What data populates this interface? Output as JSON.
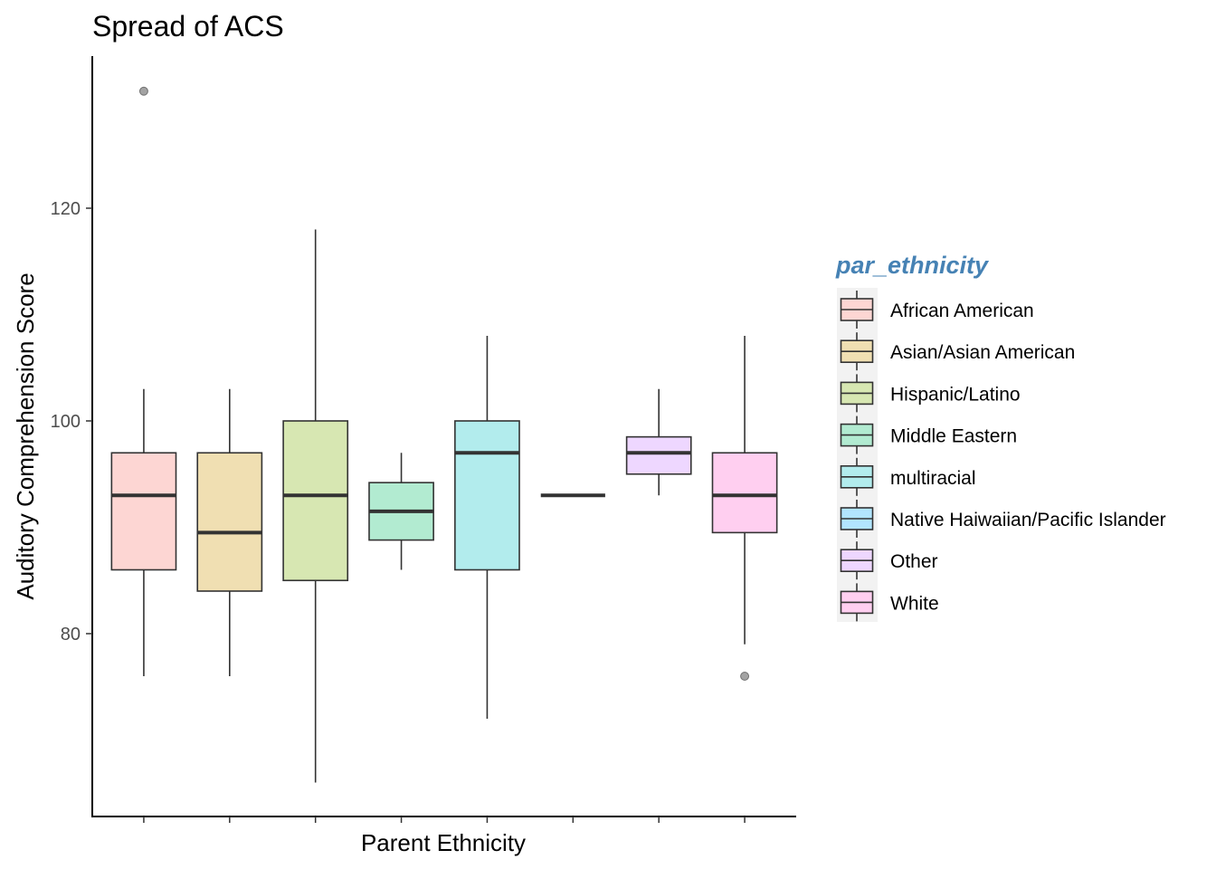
{
  "chart_data": {
    "type": "boxplot",
    "title": "Spread of ACS",
    "xlabel": "Parent Ethnicity",
    "ylabel": "Auditory Comprehension Score",
    "ylim": [
      64,
      131.5
    ],
    "yticks": [
      80,
      100,
      120
    ],
    "x_tick_labels_shown": false,
    "legend": {
      "title": "par_ethnicity",
      "title_color": "#4682B4",
      "placement": "right"
    },
    "box_alpha": 0.3,
    "categories": [
      "African American",
      "Asian/Asian American",
      "Hispanic/Latino",
      "Middle Eastern",
      "multiracial",
      "Native Haiwaiian/Pacific Islander",
      "Other",
      "White"
    ],
    "colors": [
      "#F8766D",
      "#CD9600",
      "#7CAE00",
      "#00BE67",
      "#00BFC4",
      "#00A9FF",
      "#C77CFF",
      "#FF61CC"
    ],
    "series": [
      {
        "name": "African American",
        "min": 76,
        "q1": 86,
        "median": 93,
        "q3": 97,
        "max": 103,
        "outliers": [
          131
        ]
      },
      {
        "name": "Asian/Asian American",
        "min": 76,
        "q1": 84,
        "median": 89.5,
        "q3": 97,
        "max": 103,
        "outliers": []
      },
      {
        "name": "Hispanic/Latino",
        "min": 66,
        "q1": 85,
        "median": 93,
        "q3": 100,
        "max": 118,
        "outliers": []
      },
      {
        "name": "Middle Eastern",
        "min": 86,
        "q1": 88.8,
        "median": 91.5,
        "q3": 94.2,
        "max": 97,
        "outliers": []
      },
      {
        "name": "multiracial",
        "min": 72,
        "q1": 86,
        "median": 97,
        "q3": 100,
        "max": 108,
        "outliers": []
      },
      {
        "name": "Native Haiwaiian/Pacific Islander",
        "min": 93,
        "q1": 93,
        "median": 93,
        "q3": 93,
        "max": 93,
        "outliers": []
      },
      {
        "name": "Other",
        "min": 93,
        "q1": 95,
        "median": 97,
        "q3": 98.5,
        "max": 103,
        "outliers": []
      },
      {
        "name": "White",
        "min": 79,
        "q1": 89.5,
        "median": 93,
        "q3": 97,
        "max": 108,
        "outliers": [
          76
        ]
      }
    ]
  }
}
